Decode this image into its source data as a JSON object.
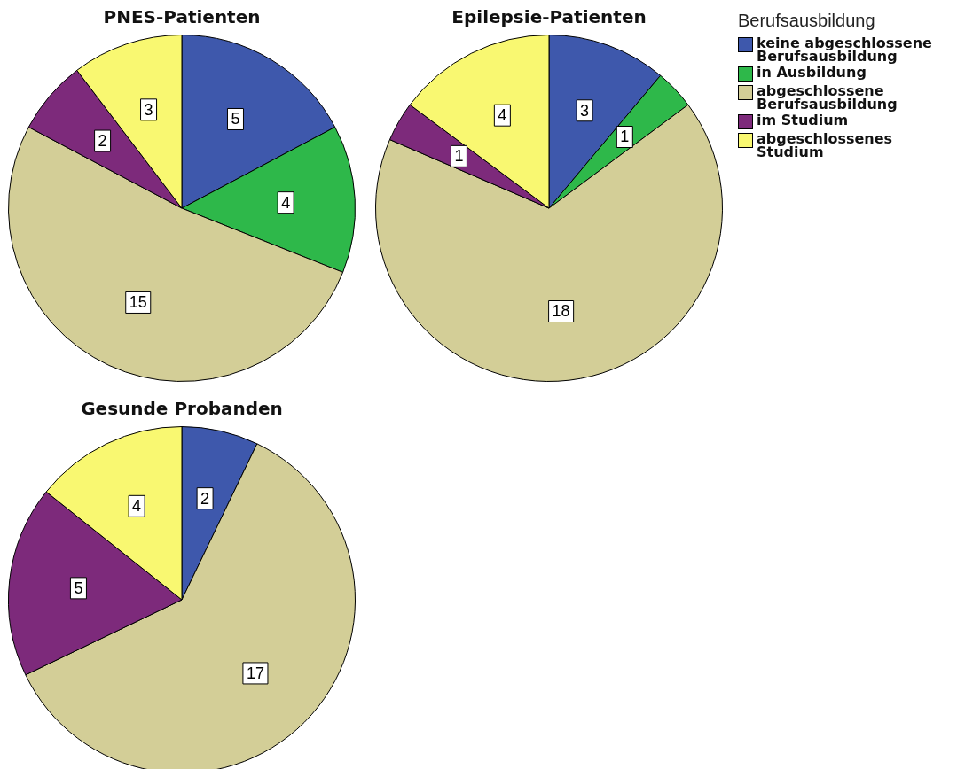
{
  "chart_data": [
    {
      "type": "pie",
      "title": "PNES-Patienten",
      "categories": [
        null,
        null,
        null,
        null,
        null
      ],
      "values": [
        5,
        4,
        15,
        2,
        3
      ],
      "colors": [
        "#3e58ac",
        "#2eb84a",
        "#d3ce97",
        "#7d2a7b",
        "#f9f871"
      ],
      "data_labels": true,
      "legend": false
    },
    {
      "type": "pie",
      "title": "Epilepsie-Patienten",
      "legend_title": "Berufsausbildung",
      "categories": [
        "keine abgeschlossene Berufsausbildung",
        "in Ausbildung",
        "abgeschlossene Berufsausbildung",
        "im Studium",
        "abgeschlossenes Studium"
      ],
      "values": [
        3,
        1,
        18,
        1,
        4
      ],
      "colors": [
        "#3e58ac",
        "#2eb84a",
        "#d3ce97",
        "#7d2a7b",
        "#f9f871"
      ],
      "data_labels": true,
      "legend": "right"
    },
    {
      "type": "pie",
      "title": "Gesunde Probanden",
      "categories": [
        null,
        null,
        null,
        null,
        null
      ],
      "values": [
        2,
        0,
        17,
        5,
        4
      ],
      "value_labels": [
        "2",
        null,
        "17",
        "5",
        "4"
      ],
      "colors": [
        "#3e58ac",
        "#2eb84a",
        "#d3ce97",
        "#7d2a7b",
        "#f9f871"
      ],
      "legend": false
    }
  ]
}
